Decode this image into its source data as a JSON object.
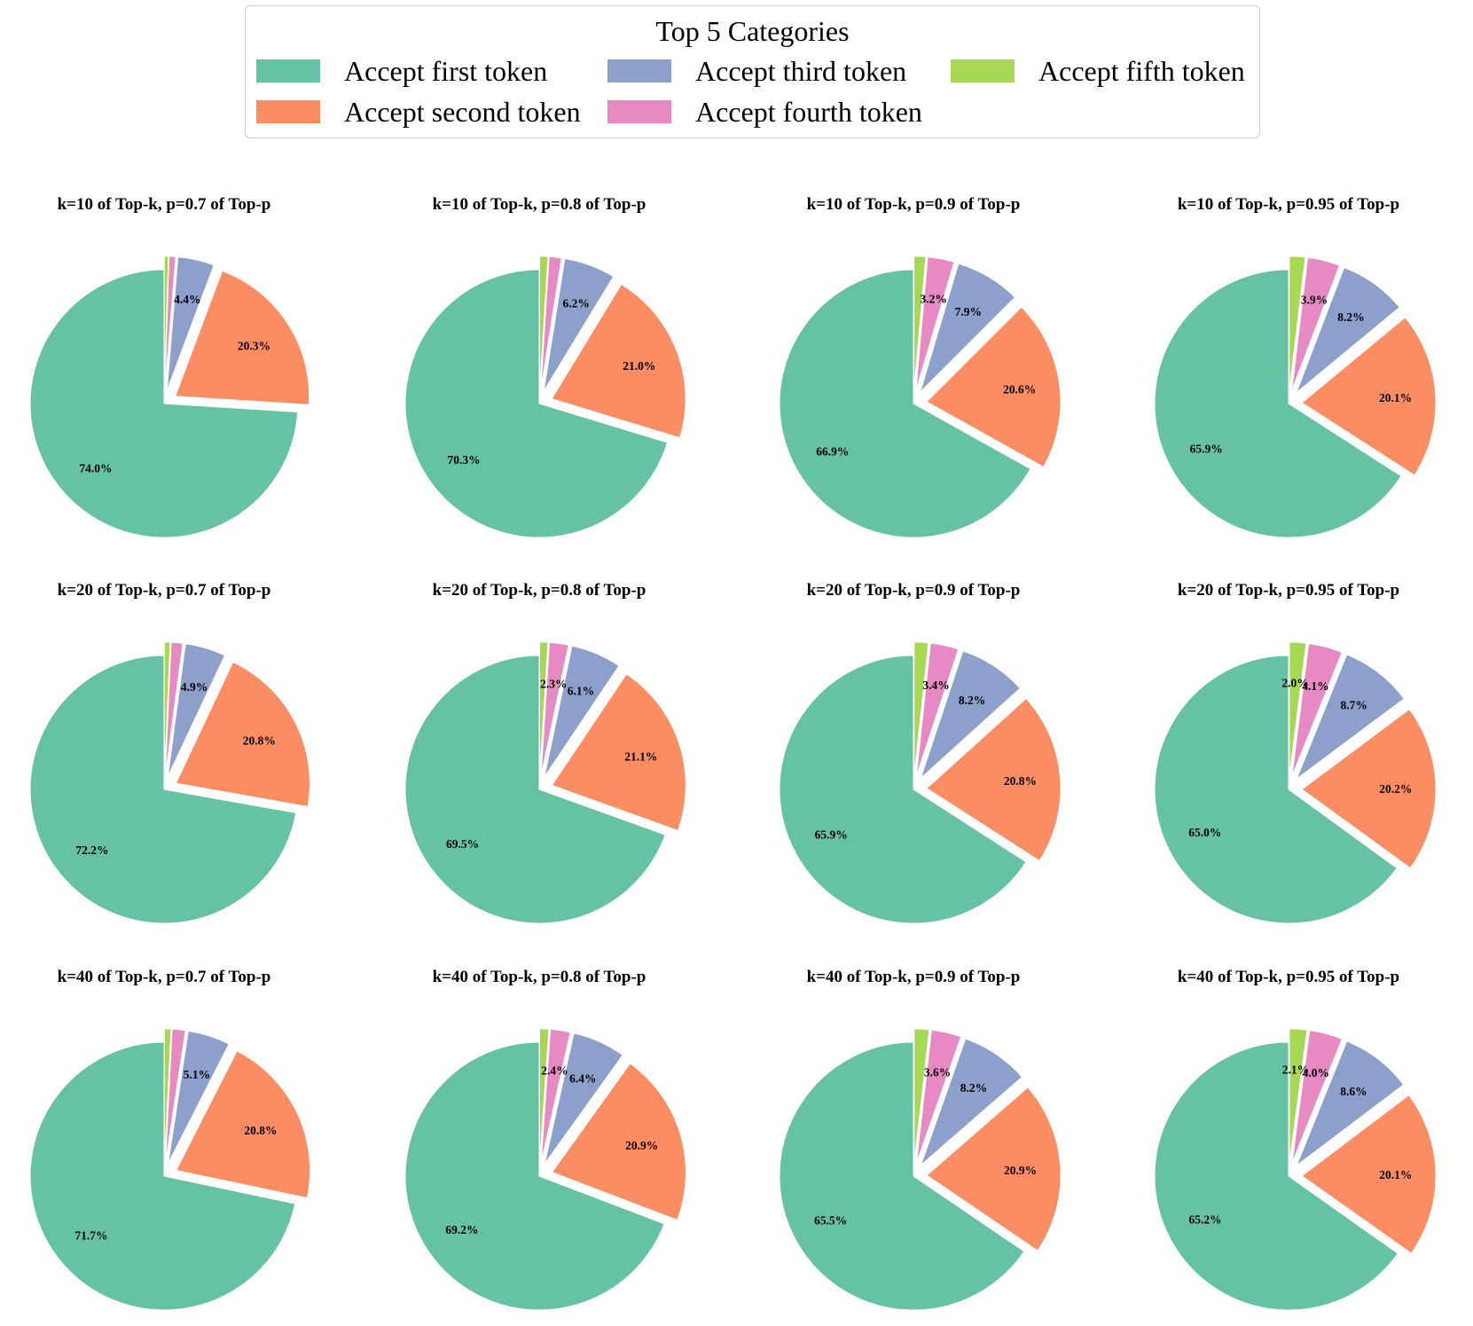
{
  "legend": {
    "title": "Top 5 Categories",
    "items": [
      {
        "label": "Accept first token",
        "color": "#66c2a5"
      },
      {
        "label": "Accept second token",
        "color": "#fc8d62"
      },
      {
        "label": "Accept third token",
        "color": "#8da0cb"
      },
      {
        "label": "Accept fourth token",
        "color": "#e78ac3"
      },
      {
        "label": "Accept fifth token",
        "color": "#a6d854"
      }
    ]
  },
  "chart_data": [
    {
      "type": "pie",
      "title": "k=10 of Top-k, p=0.7 of Top-p",
      "values": [
        74.0,
        20.3,
        4.4,
        0.8,
        0.5
      ],
      "labels": [
        "74.0%",
        "20.3%",
        "4.4%",
        "",
        ""
      ]
    },
    {
      "type": "pie",
      "title": "k=10 of Top-k, p=0.8 of Top-p",
      "values": [
        70.3,
        21.0,
        6.2,
        1.5,
        1.0
      ],
      "labels": [
        "70.3%",
        "21.0%",
        "6.2%",
        "",
        ""
      ]
    },
    {
      "type": "pie",
      "title": "k=10 of Top-k, p=0.9 of Top-p",
      "values": [
        66.9,
        20.6,
        7.9,
        3.2,
        1.4
      ],
      "labels": [
        "66.9%",
        "20.6%",
        "7.9%",
        "3.2%",
        ""
      ]
    },
    {
      "type": "pie",
      "title": "k=10 of Top-k, p=0.95 of Top-p",
      "values": [
        65.9,
        20.1,
        8.2,
        3.9,
        1.9
      ],
      "labels": [
        "65.9%",
        "20.1%",
        "8.2%",
        "3.9%",
        ""
      ]
    },
    {
      "type": "pie",
      "title": "k=20 of Top-k, p=0.7 of Top-p",
      "values": [
        72.2,
        20.8,
        4.9,
        1.4,
        0.7
      ],
      "labels": [
        "72.2%",
        "20.8%",
        "4.9%",
        "",
        ""
      ]
    },
    {
      "type": "pie",
      "title": "k=20 of Top-k, p=0.8 of Top-p",
      "values": [
        69.5,
        21.1,
        6.1,
        2.3,
        1.0
      ],
      "labels": [
        "69.5%",
        "21.1%",
        "6.1%",
        "2.3%",
        ""
      ]
    },
    {
      "type": "pie",
      "title": "k=20 of Top-k, p=0.9 of Top-p",
      "values": [
        65.9,
        20.8,
        8.2,
        3.4,
        1.7
      ],
      "labels": [
        "65.9%",
        "20.8%",
        "8.2%",
        "3.4%",
        ""
      ]
    },
    {
      "type": "pie",
      "title": "k=20 of Top-k, p=0.95 of Top-p",
      "values": [
        65.0,
        20.2,
        8.7,
        4.1,
        2.0
      ],
      "labels": [
        "65.0%",
        "20.2%",
        "8.7%",
        "4.1%",
        "2.0%"
      ]
    },
    {
      "type": "pie",
      "title": "k=40 of Top-k, p=0.7 of Top-p",
      "values": [
        71.7,
        20.8,
        5.1,
        1.6,
        0.8
      ],
      "labels": [
        "71.7%",
        "20.8%",
        "5.1%",
        "",
        ""
      ]
    },
    {
      "type": "pie",
      "title": "k=40 of Top-k, p=0.8 of Top-p",
      "values": [
        69.2,
        20.9,
        6.4,
        2.4,
        1.1
      ],
      "labels": [
        "69.2%",
        "20.9%",
        "6.4%",
        "2.4%",
        ""
      ]
    },
    {
      "type": "pie",
      "title": "k=40 of Top-k, p=0.9 of Top-p",
      "values": [
        65.5,
        20.9,
        8.2,
        3.6,
        1.8
      ],
      "labels": [
        "65.5%",
        "20.9%",
        "8.2%",
        "3.6%",
        ""
      ]
    },
    {
      "type": "pie",
      "title": "k=40 of Top-k, p=0.95 of Top-p",
      "values": [
        65.2,
        20.1,
        8.6,
        4.0,
        2.1
      ],
      "labels": [
        "65.2%",
        "20.1%",
        "8.6%",
        "4.0%",
        "2.1%"
      ]
    }
  ]
}
